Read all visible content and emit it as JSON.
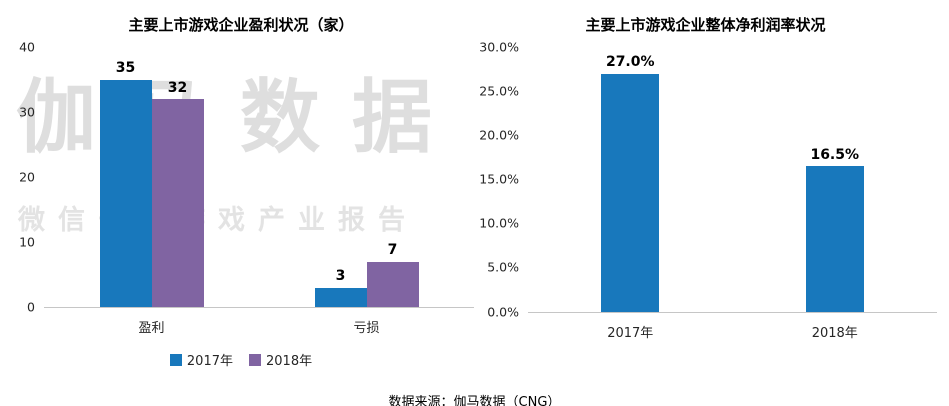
{
  "source": "数据来源：伽马数据（CNG）",
  "watermark": {
    "line1": "伽马数据",
    "line2": "微信号：游戏产业报告"
  },
  "colors": {
    "blue": "#1878bc",
    "purple": "#8064a2",
    "axis_line": "#c6c6c6"
  },
  "chart_data": [
    {
      "type": "bar",
      "title": "主要上市游戏企业盈利状况（家）",
      "categories": [
        "盈利",
        "亏损"
      ],
      "series": [
        {
          "name": "2017年",
          "color": "#1878bc",
          "values": [
            35,
            3
          ],
          "labels": [
            "35",
            "3"
          ]
        },
        {
          "name": "2018年",
          "color": "#8064a2",
          "values": [
            32,
            7
          ],
          "labels": [
            "32",
            "7"
          ]
        }
      ],
      "ylim": [
        0,
        40
      ],
      "yticks": [
        {
          "value": 0,
          "label": "0"
        },
        {
          "value": 10,
          "label": "10"
        },
        {
          "value": 20,
          "label": "20"
        },
        {
          "value": 30,
          "label": "30"
        },
        {
          "value": 40,
          "label": "40"
        }
      ],
      "grid": false,
      "legend_position": "bottom"
    },
    {
      "type": "bar",
      "title": "主要上市游戏企业整体净利润率状况",
      "categories": [
        "2017年",
        "2018年"
      ],
      "series": [
        {
          "name": "净利润率",
          "color": "#1878bc",
          "values": [
            27.0,
            16.5
          ],
          "labels": [
            "27.0%",
            "16.5%"
          ]
        }
      ],
      "ylim": [
        0,
        30
      ],
      "yticks": [
        {
          "value": 0,
          "label": "0.0%"
        },
        {
          "value": 5,
          "label": "5.0%"
        },
        {
          "value": 10,
          "label": "10.0%"
        },
        {
          "value": 15,
          "label": "15.0%"
        },
        {
          "value": 20,
          "label": "20.0%"
        },
        {
          "value": 25,
          "label": "25.0%"
        },
        {
          "value": 30,
          "label": "30.0%"
        }
      ],
      "grid": false,
      "legend_position": "none"
    }
  ]
}
